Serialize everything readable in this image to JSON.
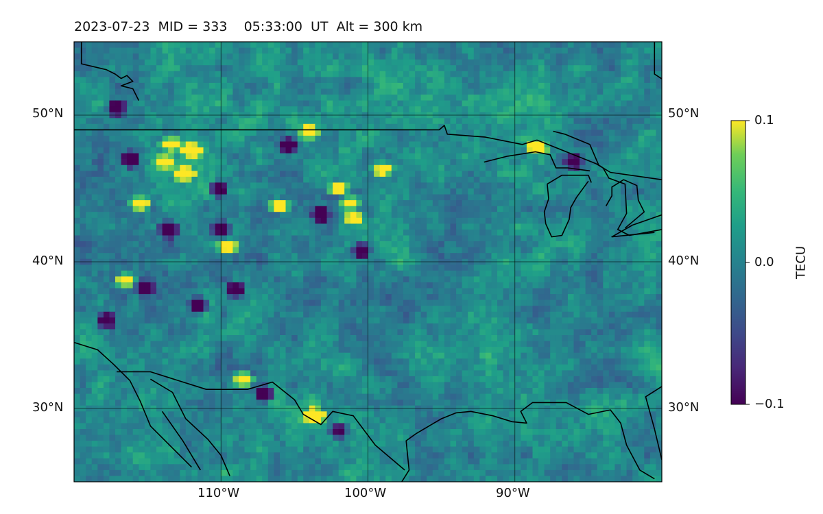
{
  "title": {
    "date": "2023-07-23",
    "mid": "MID = 333",
    "time": "05:33:00  UT",
    "alt": "Alt = 300 km"
  },
  "map": {
    "projection": "plate-carree",
    "lon_range": [
      -120,
      -80
    ],
    "lat_range": [
      25,
      55
    ],
    "gridlines": true,
    "lon_ticks": [
      {
        "lon": -110,
        "label": "110°W"
      },
      {
        "lon": -100,
        "label": "100°W"
      },
      {
        "lon": -90,
        "label": "90°W"
      }
    ],
    "lat_ticks": [
      {
        "lat": 50,
        "label": "50°N"
      },
      {
        "lat": 40,
        "label": "40°N"
      },
      {
        "lat": 30,
        "label": "30°N"
      }
    ]
  },
  "colorbar": {
    "label": "TECU",
    "min": -0.1,
    "max": 0.1,
    "colormap": "viridis",
    "ticks": [
      {
        "value": 0.1,
        "label": "0.1"
      },
      {
        "value": 0.0,
        "label": "0.0"
      },
      {
        "value": -0.1,
        "label": "−0.1"
      }
    ]
  },
  "chart_data": {
    "type": "heatmap",
    "quantity": "TECU",
    "value_range": [
      -0.1,
      0.1
    ],
    "background_mean": 0.0,
    "hotspots_positive": [
      [
        -115.5,
        44.0
      ],
      [
        -113.8,
        46.8
      ],
      [
        -112.5,
        46.0
      ],
      [
        -106.0,
        43.8
      ],
      [
        -101.2,
        44.0
      ],
      [
        -102.0,
        45.0
      ],
      [
        -101.0,
        43.0
      ],
      [
        -99.0,
        46.3
      ],
      [
        -88.5,
        47.8
      ],
      [
        -116.5,
        38.7
      ],
      [
        -108.5,
        32.0
      ],
      [
        -103.6,
        29.5
      ],
      [
        -113.4,
        48.0
      ],
      [
        -104.0,
        48.8
      ],
      [
        -112.0,
        47.6
      ],
      [
        -109.5,
        41.0
      ]
    ],
    "hotspots_negative": [
      [
        -117.1,
        50.5
      ],
      [
        -113.6,
        42.2
      ],
      [
        -110.0,
        42.2
      ],
      [
        -103.2,
        43.2
      ],
      [
        -100.4,
        40.8
      ],
      [
        -115.2,
        38.2
      ],
      [
        -109.0,
        38.1
      ],
      [
        -105.4,
        47.9
      ],
      [
        -110.2,
        45.0
      ],
      [
        -116.2,
        47.0
      ],
      [
        -86.0,
        46.8
      ],
      [
        -107.0,
        31.0
      ],
      [
        -102.0,
        28.5
      ],
      [
        -111.5,
        37.0
      ],
      [
        -117.8,
        36.0
      ]
    ],
    "coastlines": [
      [
        [
          -120,
          49
        ],
        [
          -95.15,
          49
        ],
        [
          -94.8,
          49.3
        ],
        [
          -94.6,
          48.7
        ],
        [
          -92,
          48.5
        ],
        [
          -89.5,
          48.0
        ],
        [
          -88.5,
          48.3
        ],
        [
          -84.5,
          46.7
        ],
        [
          -83.5,
          46.1
        ],
        [
          -80,
          45.6
        ]
      ],
      [
        [
          -119.5,
          55
        ],
        [
          -119.5,
          53.5
        ],
        [
          -117.8,
          53.1
        ],
        [
          -117.2,
          52.8
        ],
        [
          -116.8,
          52.5
        ],
        [
          -116.4,
          52.7
        ],
        [
          -116.0,
          52.3
        ],
        [
          -116.8,
          52.0
        ],
        [
          -116.0,
          51.8
        ],
        [
          -115.6,
          51.0
        ]
      ],
      [
        [
          -80.5,
          55
        ],
        [
          -80.5,
          52.8
        ],
        [
          -78.5,
          51.5
        ],
        [
          -80,
          51.2
        ]
      ],
      [
        [
          -87.4,
          48.9
        ],
        [
          -86.6,
          48.7
        ],
        [
          -84.9,
          48.0
        ],
        [
          -84.3,
          46.6
        ],
        [
          -84.0,
          46.4
        ]
      ],
      [
        [
          -92.1,
          46.8
        ],
        [
          -90.5,
          47.2
        ],
        [
          -88.6,
          47.5
        ],
        [
          -87.6,
          47.3
        ],
        [
          -87.2,
          46.4
        ],
        [
          -86.4,
          46.4
        ],
        [
          -84.9,
          46.2
        ]
      ],
      [
        [
          -87.8,
          45.3
        ],
        [
          -86.8,
          45.9
        ],
        [
          -86.0,
          45.9
        ],
        [
          -85.0,
          45.9
        ],
        [
          -84.8,
          45.4
        ]
      ],
      [
        [
          -87.8,
          45.3
        ],
        [
          -87.7,
          44.3
        ],
        [
          -88.0,
          43.4
        ],
        [
          -87.9,
          42.6
        ],
        [
          -87.5,
          41.7
        ],
        [
          -86.8,
          41.8
        ],
        [
          -86.3,
          42.9
        ],
        [
          -86.2,
          43.7
        ],
        [
          -85.8,
          44.4
        ],
        [
          -85.0,
          45.5
        ]
      ],
      [
        [
          -84.0,
          46.4
        ],
        [
          -83.6,
          45.7
        ],
        [
          -82.5,
          45.3
        ],
        [
          -82.4,
          43.3
        ],
        [
          -83.0,
          42.2
        ],
        [
          -82.2,
          41.8
        ],
        [
          -80.0,
          42.2
        ]
      ],
      [
        [
          -83.8,
          43.8
        ],
        [
          -83.4,
          44.5
        ],
        [
          -83.4,
          45.1
        ],
        [
          -82.6,
          45.6
        ],
        [
          -81.7,
          45.2
        ],
        [
          -81.6,
          44.2
        ],
        [
          -81.2,
          43.4
        ],
        [
          -82.5,
          42.3
        ]
      ],
      [
        [
          -80,
          43.2
        ],
        [
          -82,
          42.5
        ],
        [
          -83.4,
          41.7
        ],
        [
          -80.5,
          42.0
        ]
      ],
      [
        [
          -97.7,
          25
        ],
        [
          -97.2,
          25.8
        ],
        [
          -97.3,
          26.8
        ],
        [
          -97.4,
          27.8
        ],
        [
          -96.7,
          28.3
        ],
        [
          -95.0,
          29.3
        ],
        [
          -94.0,
          29.7
        ],
        [
          -93.0,
          29.8
        ],
        [
          -91.5,
          29.5
        ],
        [
          -90.2,
          29.1
        ],
        [
          -89.2,
          29.0
        ],
        [
          -89.6,
          29.8
        ],
        [
          -88.8,
          30.4
        ],
        [
          -86.5,
          30.4
        ],
        [
          -85.0,
          29.6
        ],
        [
          -83.5,
          29.9
        ],
        [
          -82.8,
          29.0
        ],
        [
          -82.4,
          27.5
        ],
        [
          -81.5,
          25.8
        ],
        [
          -80.5,
          25.2
        ]
      ],
      [
        [
          -80,
          31.5
        ],
        [
          -81.1,
          30.8
        ],
        [
          -80.5,
          28.6
        ],
        [
          -80.0,
          26.5
        ]
      ],
      [
        [
          -120,
          34.5
        ],
        [
          -118.4,
          34.0
        ],
        [
          -117.3,
          33.0
        ],
        [
          -116.2,
          31.9
        ],
        [
          -115.5,
          30.5
        ],
        [
          -114.8,
          28.8
        ],
        [
          -113.2,
          27.2
        ],
        [
          -112.0,
          26.0
        ]
      ],
      [
        [
          -117.1,
          32.5
        ],
        [
          -114.8,
          32.5
        ],
        [
          -111.0,
          31.3
        ],
        [
          -108.2,
          31.3
        ],
        [
          -106.5,
          31.8
        ],
        [
          -105.0,
          30.6
        ],
        [
          -104.4,
          29.6
        ],
        [
          -103.2,
          28.9
        ],
        [
          -102.4,
          29.8
        ],
        [
          -101.0,
          29.5
        ],
        [
          -99.5,
          27.5
        ],
        [
          -97.5,
          25.8
        ]
      ],
      [
        [
          -114.8,
          32.0
        ],
        [
          -113.3,
          31.1
        ],
        [
          -112.4,
          29.3
        ],
        [
          -110.9,
          27.9
        ],
        [
          -110.0,
          26.8
        ],
        [
          -109.4,
          25.4
        ]
      ],
      [
        [
          -114.0,
          29.8
        ],
        [
          -112.6,
          27.8
        ],
        [
          -111.4,
          25.8
        ]
      ]
    ]
  }
}
